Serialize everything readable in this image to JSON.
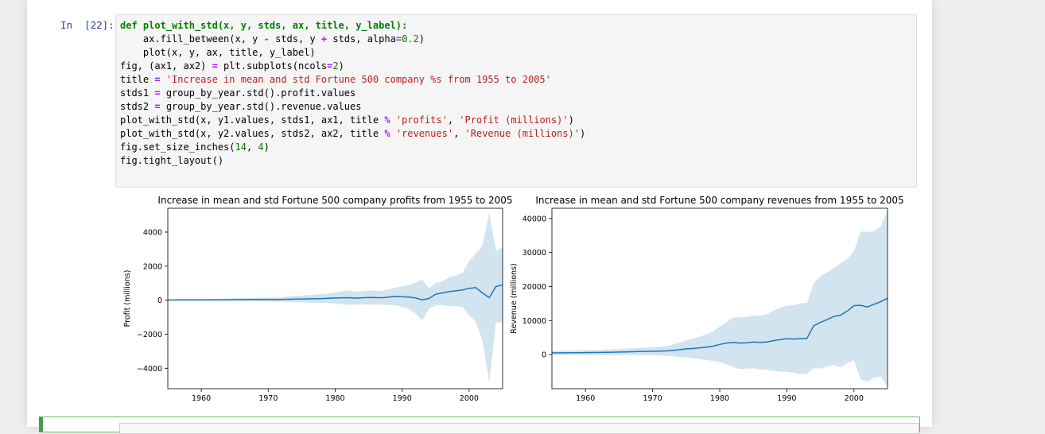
{
  "cell": {
    "prompt": "In  [22]:"
  },
  "code_lines": [
    "def plot_with_std(x, y, stds, ax, title, y_label):",
    "    ax.fill_between(x, y - stds, y + stds, alpha=0.2)",
    "    plot(x, y, ax, title, y_label)",
    "fig, (ax1, ax2) = plt.subplots(ncols=2)",
    "title = 'Increase in mean and std Fortune 500 company %s from 1955 to 2005'",
    "stds1 = group_by_year.std().profit.values",
    "stds2 = group_by_year.std().revenue.values",
    "plot_with_std(x, y1.values, stds1, ax1, title % 'profits', 'Profit (millions)')",
    "plot_with_std(x, y2.values, stds2, ax2, title % 'revenues', 'Revenue (millions)')",
    "fig.set_size_inches(14, 4)",
    "fig.tight_layout()"
  ],
  "colors": {
    "line": "#1f77b4",
    "fill": "#1f77b4",
    "fill_alpha": 0.2
  },
  "chart_data": [
    {
      "type": "line",
      "title": "Increase in mean and std Fortune 500 company profits from 1955 to 2005",
      "xlabel": "",
      "ylabel": "Profit (millions)",
      "xlim": [
        1955,
        2005
      ],
      "ylim": [
        -5200,
        5400
      ],
      "xticks": [
        1960,
        1970,
        1980,
        1990,
        2000
      ],
      "yticks": [
        -4000,
        -2000,
        0,
        2000,
        4000
      ],
      "yticklabels": [
        "−4000",
        "−2000",
        "0",
        "2000",
        "4000"
      ],
      "x": [
        1955,
        1956,
        1957,
        1958,
        1959,
        1960,
        1961,
        1962,
        1963,
        1964,
        1965,
        1966,
        1967,
        1968,
        1969,
        1970,
        1971,
        1972,
        1973,
        1974,
        1975,
        1976,
        1977,
        1978,
        1979,
        1980,
        1981,
        1982,
        1983,
        1984,
        1985,
        1986,
        1987,
        1988,
        1989,
        1990,
        1991,
        1992,
        1993,
        1994,
        1995,
        1996,
        1997,
        1998,
        1999,
        2000,
        2001,
        2002,
        2003,
        2004,
        2005
      ],
      "mean": [
        10,
        12,
        14,
        15,
        17,
        18,
        19,
        21,
        23,
        26,
        30,
        34,
        36,
        38,
        42,
        40,
        38,
        45,
        55,
        65,
        72,
        78,
        85,
        95,
        110,
        130,
        140,
        145,
        120,
        140,
        160,
        150,
        140,
        180,
        215,
        205,
        180,
        130,
        20,
        100,
        350,
        420,
        500,
        550,
        600,
        700,
        740,
        420,
        150,
        800,
        900
      ],
      "std": [
        40,
        42,
        44,
        46,
        48,
        50,
        55,
        60,
        65,
        70,
        80,
        90,
        95,
        100,
        110,
        120,
        130,
        140,
        160,
        180,
        200,
        220,
        240,
        260,
        290,
        330,
        380,
        420,
        380,
        390,
        420,
        410,
        400,
        460,
        520,
        600,
        700,
        900,
        1200,
        600,
        650,
        700,
        850,
        900,
        1000,
        1600,
        2000,
        2800,
        5000,
        2100,
        2200
      ]
    },
    {
      "type": "line",
      "title": "Increase in mean and std Fortune 500 company revenues from 1955 to 2005",
      "xlabel": "",
      "ylabel": "Revenue (millions)",
      "xlim": [
        1955,
        2005
      ],
      "ylim": [
        -10000,
        43000
      ],
      "xticks": [
        1960,
        1970,
        1980,
        1990,
        2000
      ],
      "yticks": [
        0,
        10000,
        20000,
        30000,
        40000
      ],
      "yticklabels": [
        "0",
        "10000",
        "20000",
        "30000",
        "40000"
      ],
      "x": [
        1955,
        1956,
        1957,
        1958,
        1959,
        1960,
        1961,
        1962,
        1963,
        1964,
        1965,
        1966,
        1967,
        1968,
        1969,
        1970,
        1971,
        1972,
        1973,
        1974,
        1975,
        1976,
        1977,
        1978,
        1979,
        1980,
        1981,
        1982,
        1983,
        1984,
        1985,
        1986,
        1987,
        1988,
        1989,
        1990,
        1991,
        1992,
        1993,
        1994,
        1995,
        1996,
        1997,
        1998,
        1999,
        2000,
        2001,
        2002,
        2003,
        2004,
        2005
      ],
      "mean": [
        500,
        520,
        540,
        560,
        580,
        600,
        620,
        640,
        680,
        720,
        760,
        820,
        860,
        900,
        950,
        1000,
        1050,
        1100,
        1250,
        1450,
        1700,
        1800,
        2000,
        2200,
        2500,
        3000,
        3400,
        3600,
        3400,
        3500,
        3700,
        3600,
        3700,
        4100,
        4400,
        4700,
        4600,
        4700,
        4800,
        8500,
        9500,
        10300,
        11200,
        11600,
        12800,
        14400,
        14500,
        14000,
        14800,
        15600,
        16600
      ],
      "std": [
        600,
        620,
        640,
        660,
        680,
        700,
        730,
        760,
        800,
        850,
        900,
        950,
        1000,
        1050,
        1100,
        1150,
        1250,
        1400,
        1700,
        2100,
        2500,
        2900,
        3300,
        3800,
        4400,
        5200,
        6200,
        7300,
        7600,
        7600,
        7700,
        7900,
        8200,
        8800,
        9400,
        9700,
        9900,
        10400,
        10400,
        12500,
        13600,
        13800,
        14200,
        15300,
        15400,
        16000,
        21700,
        22000,
        21500,
        22000,
        26000
      ]
    }
  ]
}
